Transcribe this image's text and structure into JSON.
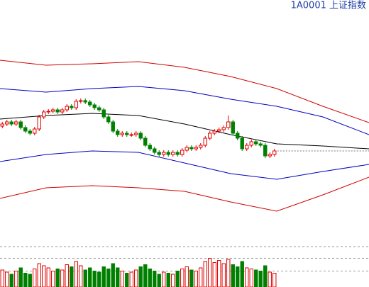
{
  "chart_data": {
    "type": "candlestick",
    "title": "1A0001 上证指数",
    "title_color": "#1f3fa8",
    "xlim": [
      0,
      80
    ],
    "ylim": [
      0,
      340
    ],
    "up_color": "#e00000",
    "down_color": "#008000",
    "open": [
      162,
      165,
      168,
      165,
      168,
      160,
      155,
      152,
      158,
      175,
      182,
      183,
      185,
      182,
      185,
      190,
      188,
      197,
      198,
      196,
      192,
      188,
      185,
      175,
      168,
      155,
      150,
      152,
      150,
      150,
      152,
      145,
      135,
      130,
      125,
      122,
      125,
      122,
      125,
      122,
      128,
      132,
      130,
      132,
      135,
      145,
      152,
      155,
      157,
      160,
      168,
      152,
      145,
      130,
      135,
      140,
      137,
      135,
      120,
      122
    ],
    "high": [
      168,
      171,
      171,
      171,
      171,
      163,
      158,
      161,
      178,
      185,
      186,
      188,
      188,
      188,
      193,
      193,
      200,
      201,
      201,
      199,
      195,
      191,
      188,
      178,
      171,
      158,
      155,
      155,
      153,
      155,
      155,
      148,
      138,
      133,
      128,
      128,
      128,
      128,
      128,
      131,
      135,
      135,
      135,
      138,
      148,
      155,
      158,
      160,
      163,
      177,
      171,
      155,
      148,
      138,
      143,
      143,
      140,
      138,
      125,
      130
    ],
    "low": [
      159,
      162,
      162,
      162,
      157,
      152,
      149,
      149,
      155,
      172,
      179,
      180,
      179,
      179,
      182,
      185,
      185,
      194,
      193,
      189,
      185,
      182,
      172,
      165,
      152,
      147,
      147,
      147,
      147,
      147,
      142,
      132,
      127,
      122,
      119,
      119,
      119,
      119,
      119,
      119,
      125,
      127,
      127,
      129,
      132,
      142,
      149,
      152,
      154,
      157,
      149,
      142,
      127,
      127,
      132,
      134,
      132,
      117,
      117,
      119
    ],
    "close": [
      165,
      168,
      165,
      168,
      160,
      155,
      152,
      158,
      175,
      182,
      183,
      185,
      182,
      185,
      190,
      188,
      197,
      198,
      196,
      192,
      188,
      185,
      175,
      168,
      155,
      150,
      152,
      150,
      150,
      152,
      145,
      135,
      130,
      125,
      122,
      125,
      122,
      125,
      122,
      128,
      132,
      130,
      132,
      135,
      145,
      152,
      155,
      157,
      160,
      168,
      152,
      145,
      130,
      135,
      140,
      137,
      135,
      120,
      122,
      127
    ],
    "line_x": [
      0,
      10,
      20,
      30,
      40,
      50,
      60,
      70,
      80
    ],
    "lines": [
      {
        "color": "#d00000",
        "values": [
          255,
          248,
          250,
          253,
          245,
          232,
          215,
          190,
          167
        ]
      },
      {
        "color": "#0000c0",
        "values": [
          215,
          210,
          215,
          218,
          212,
          200,
          190,
          175,
          150
        ]
      },
      {
        "color": "#000000",
        "values": [
          172,
          177,
          180,
          177,
          165,
          150,
          137,
          134,
          130
        ]
      },
      {
        "color": "#0000c0",
        "values": [
          112,
          122,
          127,
          125,
          110,
          95,
          87,
          98,
          108
        ]
      },
      {
        "color": "#d00000",
        "values": [
          60,
          75,
          78,
          75,
          70,
          55,
          42,
          65,
          90
        ]
      }
    ],
    "volume": {
      "ylim": [
        0,
        40
      ],
      "yticks": [
        15,
        27,
        38
      ],
      "values": [
        16,
        14,
        12,
        15,
        18,
        13,
        12,
        17,
        22,
        20,
        18,
        15,
        17,
        16,
        21,
        19,
        24,
        20,
        16,
        18,
        15,
        14,
        19,
        17,
        22,
        18,
        15,
        13,
        14,
        16,
        19,
        21,
        17,
        15,
        12,
        14,
        13,
        12,
        15,
        17,
        19,
        16,
        15,
        18,
        24,
        27,
        23,
        25,
        22,
        26,
        21,
        19,
        24,
        18,
        17,
        16,
        15,
        20,
        14,
        13
      ]
    }
  }
}
